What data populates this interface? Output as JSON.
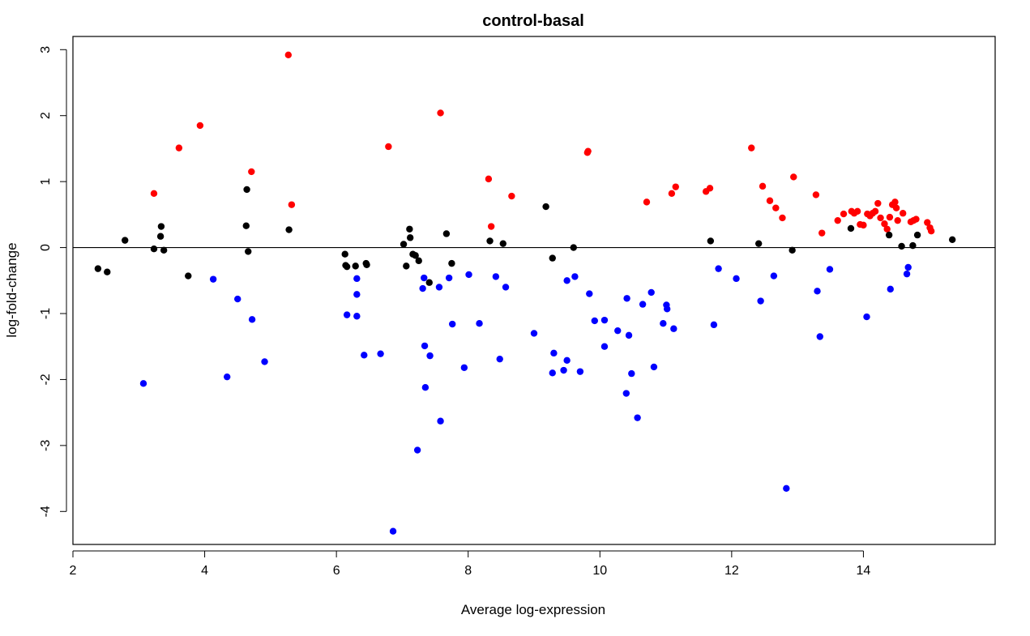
{
  "chart_data": {
    "type": "scatter",
    "title": "control-basal",
    "xlabel": "Average log-expression",
    "ylabel": "log-fold-change",
    "xlim": [
      2,
      16
    ],
    "ylim": [
      -4.5,
      3.2
    ],
    "xticks": [
      2,
      4,
      6,
      8,
      10,
      12,
      14
    ],
    "yticks": [
      -4,
      -3,
      -2,
      -1,
      0,
      1,
      2,
      3
    ],
    "reference_line_y": 0,
    "grid": false,
    "legend": "none",
    "colors": {
      "up": "#ff0000",
      "down": "#0000ff",
      "ns": "#000000"
    },
    "series": [
      {
        "key": "up",
        "color": "#ff0000",
        "x": [
          3.23,
          3.61,
          3.93,
          4.71,
          5.27,
          5.32,
          6.79,
          7.58,
          8.31,
          8.35,
          8.66,
          9.81,
          9.82,
          10.71,
          11.09,
          11.15,
          11.61,
          11.67,
          12.3,
          12.47,
          12.58,
          12.67,
          12.77,
          12.94,
          13.28,
          13.37,
          13.61,
          13.7,
          13.82,
          13.86,
          13.91,
          13.95,
          14.0,
          14.06,
          14.1,
          14.14,
          14.18,
          14.22,
          14.26,
          14.32,
          14.36,
          14.4,
          14.44,
          14.48,
          14.5,
          14.52,
          14.6,
          14.72,
          14.76,
          14.8,
          14.97,
          15.01,
          15.03
        ],
        "y": [
          0.82,
          1.51,
          1.85,
          1.15,
          2.92,
          0.65,
          1.53,
          2.04,
          1.04,
          0.32,
          0.78,
          1.44,
          1.46,
          0.69,
          0.82,
          0.92,
          0.85,
          0.9,
          1.51,
          0.93,
          0.71,
          0.6,
          0.45,
          1.07,
          0.8,
          0.22,
          0.41,
          0.51,
          0.55,
          0.52,
          0.55,
          0.35,
          0.34,
          0.51,
          0.48,
          0.52,
          0.55,
          0.67,
          0.45,
          0.36,
          0.28,
          0.46,
          0.65,
          0.69,
          0.6,
          0.41,
          0.52,
          0.39,
          0.41,
          0.43,
          0.38,
          0.3,
          0.25
        ]
      },
      {
        "key": "down",
        "color": "#0000ff",
        "x": [
          3.07,
          4.13,
          4.34,
          4.5,
          4.72,
          4.91,
          6.16,
          6.31,
          6.31,
          6.31,
          6.42,
          6.67,
          6.86,
          7.23,
          7.31,
          7.33,
          7.34,
          7.35,
          7.42,
          7.56,
          7.58,
          7.71,
          7.76,
          7.94,
          8.01,
          8.17,
          8.42,
          8.48,
          8.57,
          9.0,
          9.28,
          9.3,
          9.45,
          9.5,
          9.5,
          9.62,
          9.7,
          9.84,
          9.92,
          10.07,
          10.07,
          10.27,
          10.4,
          10.41,
          10.44,
          10.48,
          10.57,
          10.65,
          10.78,
          10.82,
          10.96,
          11.01,
          11.02,
          11.12,
          11.73,
          11.8,
          12.07,
          12.44,
          12.64,
          12.83,
          13.3,
          13.34,
          13.49,
          14.05,
          14.41,
          14.66,
          14.68
        ],
        "y": [
          -2.06,
          -0.48,
          -1.96,
          -0.78,
          -1.09,
          -1.73,
          -1.02,
          -0.47,
          -0.71,
          -1.04,
          -1.63,
          -1.61,
          -4.3,
          -3.07,
          -0.62,
          -0.46,
          -1.49,
          -2.12,
          -1.64,
          -0.6,
          -2.63,
          -0.46,
          -1.16,
          -1.82,
          -0.41,
          -1.15,
          -0.44,
          -1.69,
          -0.6,
          -1.3,
          -1.9,
          -1.6,
          -1.86,
          -1.71,
          -0.5,
          -0.44,
          -1.88,
          -0.7,
          -1.11,
          -1.5,
          -1.1,
          -1.26,
          -2.21,
          -0.77,
          -1.33,
          -1.91,
          -2.58,
          -0.86,
          -0.68,
          -1.81,
          -1.15,
          -0.87,
          -0.93,
          -1.23,
          -1.17,
          -0.32,
          -0.47,
          -0.81,
          -0.43,
          -3.65,
          -0.66,
          -1.35,
          -0.33,
          -1.05,
          -0.63,
          -0.4,
          -0.3
        ]
      },
      {
        "key": "ns",
        "color": "#000000",
        "x": [
          2.38,
          2.52,
          2.79,
          3.23,
          3.33,
          3.34,
          3.38,
          3.75,
          4.63,
          4.64,
          4.66,
          5.28,
          6.13,
          6.14,
          6.16,
          6.29,
          6.45,
          6.46,
          7.02,
          7.06,
          7.11,
          7.12,
          7.16,
          7.2,
          7.25,
          7.41,
          7.67,
          7.75,
          8.33,
          8.53,
          9.18,
          9.28,
          9.6,
          11.68,
          12.41,
          12.92,
          13.81,
          14.39,
          14.58,
          14.75,
          14.82,
          15.35
        ],
        "y": [
          -0.32,
          -0.37,
          0.11,
          -0.02,
          0.17,
          0.32,
          -0.04,
          -0.43,
          0.33,
          0.88,
          -0.06,
          0.27,
          -0.1,
          -0.27,
          -0.29,
          -0.28,
          -0.24,
          -0.26,
          0.05,
          -0.28,
          0.28,
          0.15,
          -0.1,
          -0.12,
          -0.2,
          -0.53,
          0.21,
          -0.24,
          0.1,
          0.06,
          0.62,
          -0.16,
          0.0,
          0.1,
          0.06,
          -0.04,
          0.29,
          0.19,
          0.02,
          0.03,
          0.19,
          0.12
        ]
      }
    ]
  }
}
